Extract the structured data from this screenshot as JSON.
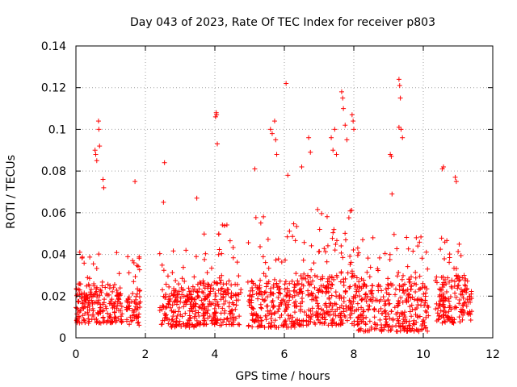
{
  "chart_data": {
    "type": "scatter",
    "title": "Day 043 of 2023, Rate Of TEC Index for receiver p803",
    "xlabel": "GPS time / hours",
    "ylabel": "ROTI / TECUs",
    "xlim": [
      0,
      12
    ],
    "ylim": [
      0,
      0.14
    ],
    "xticks": [
      "0",
      "2",
      "4",
      "6",
      "8",
      "10",
      "12"
    ],
    "yticks": [
      "0",
      "0.02",
      "0.04",
      "0.06",
      "0.08",
      "0.1",
      "0.12",
      "0.14"
    ],
    "grid": true,
    "marker": "+",
    "color": "#ff0000",
    "data_segments": [
      {
        "x_start": 0.0,
        "x_end": 1.35,
        "low": 0.007,
        "mid": 0.018,
        "high": 0.042
      },
      {
        "x_start": 1.45,
        "x_end": 1.85,
        "low": 0.006,
        "mid": 0.015,
        "high": 0.04
      },
      {
        "x_start": 2.4,
        "x_end": 3.5,
        "low": 0.005,
        "mid": 0.016,
        "high": 0.045
      },
      {
        "x_start": 3.5,
        "x_end": 4.75,
        "low": 0.006,
        "mid": 0.02,
        "high": 0.055
      },
      {
        "x_start": 4.95,
        "x_end": 6.35,
        "low": 0.005,
        "mid": 0.02,
        "high": 0.06
      },
      {
        "x_start": 6.35,
        "x_end": 8.1,
        "low": 0.006,
        "mid": 0.022,
        "high": 0.065
      },
      {
        "x_start": 8.1,
        "x_end": 10.15,
        "low": 0.003,
        "mid": 0.018,
        "high": 0.05
      },
      {
        "x_start": 10.35,
        "x_end": 11.4,
        "low": 0.007,
        "mid": 0.022,
        "high": 0.05
      }
    ],
    "outliers": [
      {
        "x": 0.55,
        "y": 0.09
      },
      {
        "x": 0.57,
        "y": 0.088
      },
      {
        "x": 0.6,
        "y": 0.085
      },
      {
        "x": 0.65,
        "y": 0.104
      },
      {
        "x": 0.66,
        "y": 0.1
      },
      {
        "x": 0.68,
        "y": 0.092
      },
      {
        "x": 0.78,
        "y": 0.076
      },
      {
        "x": 0.8,
        "y": 0.072
      },
      {
        "x": 1.7,
        "y": 0.075
      },
      {
        "x": 2.55,
        "y": 0.084
      },
      {
        "x": 2.52,
        "y": 0.065
      },
      {
        "x": 3.48,
        "y": 0.067
      },
      {
        "x": 4.02,
        "y": 0.106
      },
      {
        "x": 4.04,
        "y": 0.108
      },
      {
        "x": 4.05,
        "y": 0.107
      },
      {
        "x": 4.07,
        "y": 0.093
      },
      {
        "x": 5.15,
        "y": 0.081
      },
      {
        "x": 5.6,
        "y": 0.1
      },
      {
        "x": 5.65,
        "y": 0.098
      },
      {
        "x": 5.72,
        "y": 0.104
      },
      {
        "x": 5.75,
        "y": 0.095
      },
      {
        "x": 5.78,
        "y": 0.088
      },
      {
        "x": 6.05,
        "y": 0.122
      },
      {
        "x": 6.1,
        "y": 0.078
      },
      {
        "x": 6.5,
        "y": 0.082
      },
      {
        "x": 6.7,
        "y": 0.096
      },
      {
        "x": 6.75,
        "y": 0.089
      },
      {
        "x": 7.35,
        "y": 0.096
      },
      {
        "x": 7.4,
        "y": 0.09
      },
      {
        "x": 7.45,
        "y": 0.1
      },
      {
        "x": 7.5,
        "y": 0.088
      },
      {
        "x": 7.65,
        "y": 0.118
      },
      {
        "x": 7.68,
        "y": 0.115
      },
      {
        "x": 7.7,
        "y": 0.11
      },
      {
        "x": 7.75,
        "y": 0.102
      },
      {
        "x": 7.8,
        "y": 0.095
      },
      {
        "x": 7.95,
        "y": 0.107
      },
      {
        "x": 7.98,
        "y": 0.104
      },
      {
        "x": 8.0,
        "y": 0.1
      },
      {
        "x": 9.05,
        "y": 0.088
      },
      {
        "x": 9.08,
        "y": 0.087
      },
      {
        "x": 9.1,
        "y": 0.069
      },
      {
        "x": 9.3,
        "y": 0.124
      },
      {
        "x": 9.32,
        "y": 0.121
      },
      {
        "x": 9.34,
        "y": 0.115
      },
      {
        "x": 9.3,
        "y": 0.101
      },
      {
        "x": 9.36,
        "y": 0.1
      },
      {
        "x": 9.4,
        "y": 0.096
      },
      {
        "x": 10.55,
        "y": 0.081
      },
      {
        "x": 10.58,
        "y": 0.082
      },
      {
        "x": 10.92,
        "y": 0.077
      },
      {
        "x": 10.95,
        "y": 0.075
      }
    ]
  }
}
